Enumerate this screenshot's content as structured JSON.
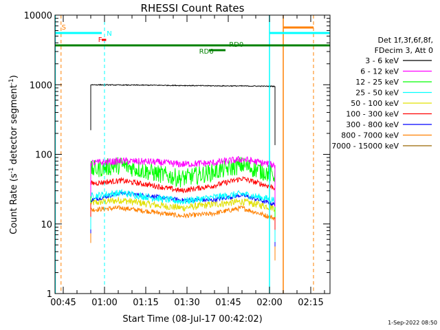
{
  "chart_data": {
    "type": "line",
    "title": "RHESSI Count Rates",
    "xlabel": "Start Time (08-Jul-17 00:42:02)",
    "ylabel": "Count Rate (s⁻¹ detector segment⁻¹)",
    "y_scale": "log",
    "ylim": [
      1,
      10000
    ],
    "xlim": [
      "00:42",
      "02:22"
    ],
    "x_ticks": [
      "00:45",
      "01:00",
      "01:15",
      "01:30",
      "01:45",
      "02:00",
      "02:15"
    ],
    "y_ticks": [
      "1",
      "10",
      "100",
      "1000",
      "10000"
    ],
    "grid": false,
    "legend_position": "right",
    "legend_header": [
      "Det 1f,3f,6f,8f,",
      "FDecim 3, Att 0"
    ],
    "data_start": "00:55",
    "data_end": "02:02",
    "series": [
      {
        "name": "3 - 6 keV",
        "color": "#000000",
        "values": [
          1000,
          990,
          985,
          975,
          965,
          960,
          950
        ]
      },
      {
        "name": "6 - 12 keV",
        "color": "#ff00ff",
        "values": [
          75,
          80,
          78,
          72,
          75,
          85,
          70
        ]
      },
      {
        "name": "12 - 25 keV",
        "color": "#00ff00",
        "values": [
          60,
          70,
          55,
          45,
          55,
          70,
          50
        ]
      },
      {
        "name": "25 - 50 keV",
        "color": "#00ffff",
        "values": [
          25,
          28,
          24,
          21,
          24,
          27,
          22
        ]
      },
      {
        "name": "50 - 100 keV",
        "color": "#e0e000",
        "values": [
          20,
          22,
          19,
          17,
          19,
          21,
          17
        ]
      },
      {
        "name": "100 - 300 keV",
        "color": "#ff0000",
        "values": [
          38,
          42,
          36,
          30,
          35,
          45,
          33
        ]
      },
      {
        "name": "300 - 800 keV",
        "color": "#0000ff",
        "values": [
          22,
          28,
          25,
          22,
          22,
          26,
          19
        ]
      },
      {
        "name": "800 - 7000 keV",
        "color": "#ff8000",
        "values": [
          16,
          17,
          15,
          13,
          14,
          17,
          12
        ]
      },
      {
        "name": "7000 - 15000 keV",
        "color": "#996600",
        "values": []
      }
    ],
    "times": [
      "00:55",
      "01:06",
      "01:17",
      "01:28",
      "01:39",
      "01:50",
      "02:02"
    ],
    "annotations": {
      "saa": "S",
      "night": "N",
      "flare": "F",
      "rd0": "RD0",
      "rd6": "RD6"
    },
    "timestamp": "1-Sep-2022 08:50"
  }
}
